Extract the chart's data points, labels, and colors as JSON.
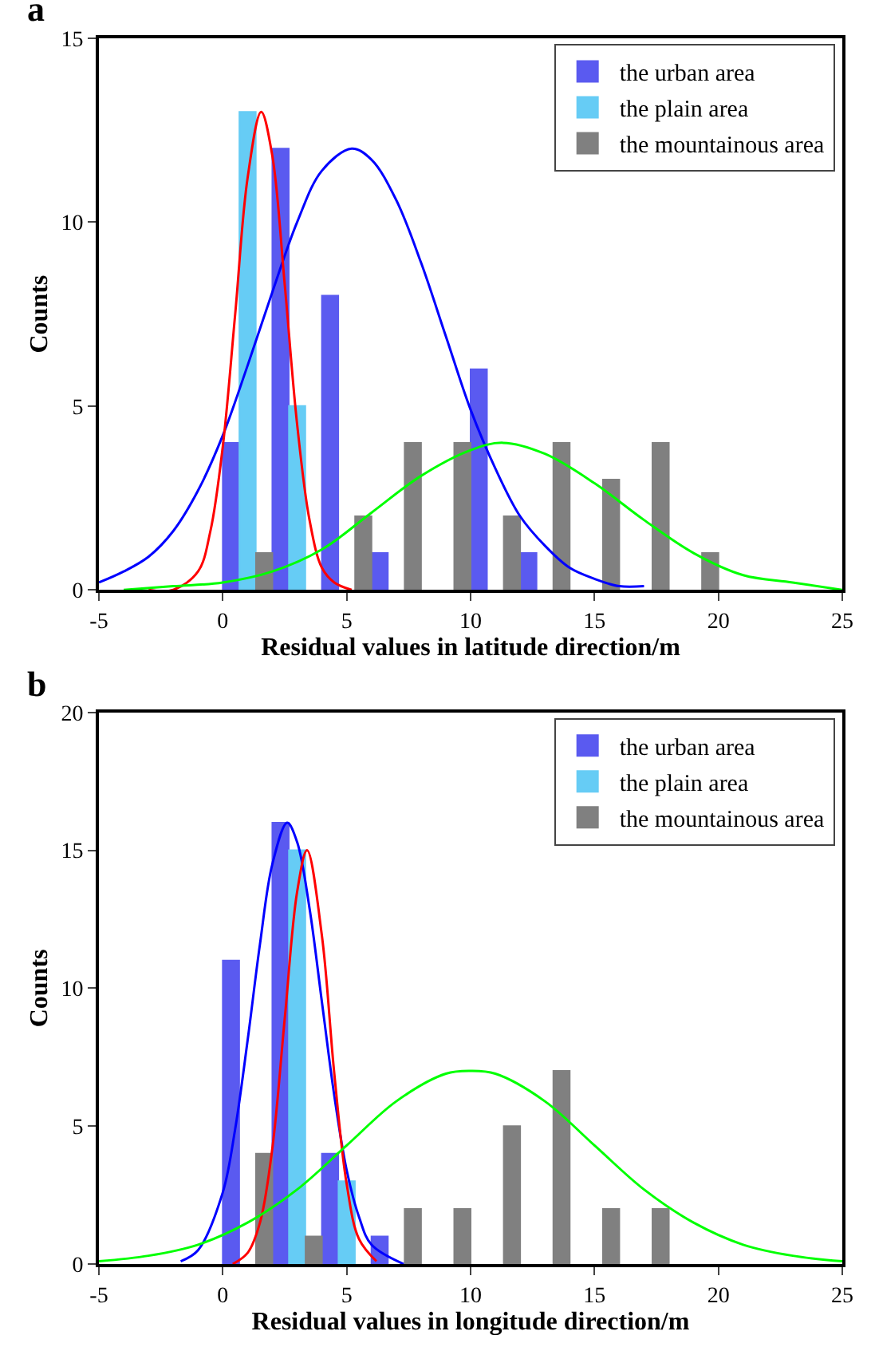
{
  "chart_data": [
    {
      "type": "bar",
      "title": "a",
      "xlabel": "Residual values in latitude direction/m",
      "ylabel": "Counts",
      "series": [
        {
          "name": "the urban area",
          "color": "#5a5af0",
          "x": [
            0.33,
            2.33,
            4.33,
            6.33,
            10.33,
            12.33
          ],
          "values": [
            4,
            12,
            8,
            1,
            6,
            1
          ]
        },
        {
          "name": "the plain area",
          "color": "#66ccf5",
          "x": [
            1,
            3
          ],
          "values": [
            13,
            5
          ]
        },
        {
          "name": "the mountainous area",
          "color": "#808080",
          "x": [
            1.67,
            5.67,
            7.67,
            9.67,
            11.67,
            13.67,
            15.67,
            17.67,
            19.67
          ],
          "values": [
            1,
            2,
            4,
            4,
            2,
            4,
            3,
            4,
            1
          ]
        },
        {
          "type": "line",
          "color": "#0000ff",
          "x": [
            -5,
            -4,
            -3,
            -2,
            -1,
            0,
            1,
            2,
            3,
            4,
            5.2,
            6,
            7,
            8,
            9,
            10,
            11,
            12,
            13,
            14,
            15,
            16,
            17
          ],
          "values": [
            0.2,
            0.5,
            0.9,
            1.6,
            2.7,
            4.2,
            6.1,
            8.1,
            10,
            11.4,
            12,
            11.7,
            10.6,
            8.9,
            6.9,
            4.9,
            3.3,
            2,
            1.2,
            0.6,
            0.3,
            0.1,
            0.1
          ]
        },
        {
          "type": "line",
          "color": "#ff0000",
          "x": [
            -3,
            -2,
            -1,
            -0.5,
            0,
            0.5,
            1,
            1.55,
            2,
            2.5,
            3,
            3.5,
            4,
            4.5,
            5.2
          ],
          "values": [
            0,
            0,
            0.5,
            1.6,
            3.9,
            7.5,
            11.2,
            13,
            11.8,
            8.3,
            4.5,
            1.9,
            0.6,
            0.2,
            0
          ]
        },
        {
          "type": "line",
          "color": "#00ff00",
          "x": [
            -4,
            -2,
            0,
            2,
            4,
            6,
            8,
            10,
            11.3,
            13,
            15,
            17,
            19,
            21,
            23,
            25
          ],
          "values": [
            0,
            0.1,
            0.2,
            0.5,
            1.1,
            2.1,
            3.1,
            3.8,
            4,
            3.7,
            2.9,
            1.9,
            1,
            0.4,
            0.2,
            0
          ]
        }
      ],
      "xlim": [
        -5,
        25
      ],
      "xticks": [
        -5,
        0,
        5,
        10,
        15,
        20,
        25
      ],
      "ylim": [
        0,
        15
      ],
      "yticks": [
        0,
        5,
        10,
        15
      ],
      "legend": "top right"
    },
    {
      "type": "bar",
      "title": "b",
      "xlabel": "Residual values in longitude direction/m",
      "ylabel": "Counts",
      "series": [
        {
          "name": "the urban area",
          "color": "#5a5af0",
          "x": [
            0.33,
            2.33,
            4.33,
            6.33
          ],
          "values": [
            11,
            16,
            4,
            1
          ]
        },
        {
          "name": "the plain area",
          "color": "#66ccf5",
          "x": [
            3,
            5
          ],
          "values": [
            15,
            3
          ]
        },
        {
          "name": "the mountainous area",
          "color": "#808080",
          "x": [
            1.67,
            3.67,
            7.67,
            9.67,
            11.67,
            13.67,
            15.67,
            17.67
          ],
          "values": [
            4,
            1,
            2,
            2,
            5,
            7,
            2,
            2
          ]
        },
        {
          "type": "line",
          "color": "#0000ff",
          "x": [
            -1.7,
            -1,
            0,
            0.5,
            1,
            1.5,
            2,
            2.6,
            3,
            3.5,
            4,
            4.5,
            5,
            5.5,
            6,
            7.3
          ],
          "values": [
            0.1,
            0.5,
            2.6,
            4.9,
            8.1,
            11.6,
            14.5,
            16,
            15.3,
            12.9,
            9.5,
            6.1,
            3.4,
            1.7,
            0.7,
            0
          ]
        },
        {
          "type": "line",
          "color": "#ff0000",
          "x": [
            0.4,
            1,
            1.5,
            2,
            2.5,
            3,
            3.4,
            4,
            4.5,
            5,
            5.5,
            6.2
          ],
          "values": [
            0,
            0.4,
            1.5,
            4.2,
            8.9,
            13.5,
            15,
            11.9,
            6.9,
            2.9,
            0.9,
            0.1
          ]
        },
        {
          "type": "line",
          "color": "#00ff00",
          "x": [
            -5,
            -3,
            -1,
            1,
            3,
            5,
            7,
            9,
            10,
            11,
            13,
            15,
            17,
            19,
            21,
            23,
            25
          ],
          "values": [
            0.1,
            0.3,
            0.7,
            1.5,
            2.7,
            4.3,
            5.9,
            6.9,
            7,
            6.9,
            5.9,
            4.3,
            2.7,
            1.5,
            0.7,
            0.3,
            0.1
          ]
        }
      ],
      "xlim": [
        -5,
        25
      ],
      "xticks": [
        -5,
        0,
        5,
        10,
        15,
        20,
        25
      ],
      "ylim": [
        0,
        20
      ],
      "yticks": [
        0,
        5,
        10,
        15,
        20
      ],
      "legend": "top right"
    }
  ]
}
